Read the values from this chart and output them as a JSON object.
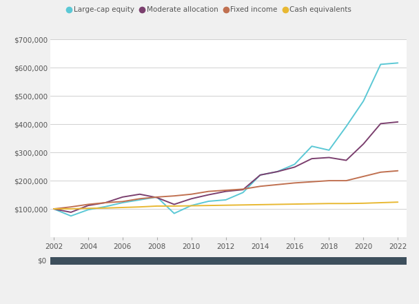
{
  "years": [
    2002,
    2003,
    2004,
    2005,
    2006,
    2007,
    2008,
    2009,
    2010,
    2011,
    2012,
    2013,
    2014,
    2015,
    2016,
    2017,
    2018,
    2019,
    2020,
    2021,
    2022
  ],
  "large_cap_equity": [
    100000,
    75000,
    97000,
    108000,
    122000,
    132000,
    142000,
    84000,
    112000,
    127000,
    132000,
    158000,
    220000,
    232000,
    258000,
    322000,
    308000,
    392000,
    482000,
    612000,
    617000
  ],
  "moderate_allocation": [
    100000,
    88000,
    112000,
    122000,
    142000,
    152000,
    140000,
    116000,
    136000,
    150000,
    162000,
    168000,
    220000,
    232000,
    248000,
    278000,
    282000,
    272000,
    330000,
    402000,
    408000
  ],
  "fixed_income": [
    100000,
    107000,
    116000,
    122000,
    126000,
    136000,
    142000,
    146000,
    152000,
    162000,
    166000,
    170000,
    180000,
    186000,
    192000,
    196000,
    200000,
    200000,
    215000,
    230000,
    235000
  ],
  "cash_equivalents": [
    100000,
    100000,
    102000,
    103000,
    105000,
    107000,
    110000,
    110000,
    111000,
    112000,
    113000,
    114000,
    115000,
    116000,
    117000,
    118000,
    119000,
    119000,
    120000,
    122000,
    124000
  ],
  "colors": {
    "large_cap_equity": "#5bc8d5",
    "moderate_allocation": "#7b3f6e",
    "fixed_income": "#c07050",
    "cash_equivalents": "#e8b832"
  },
  "legend_labels": [
    "Large-cap equity",
    "Moderate allocation",
    "Fixed income",
    "Cash equivalents"
  ],
  "ylim": [
    0,
    700000
  ],
  "yticks": [
    0,
    100000,
    200000,
    300000,
    400000,
    500000,
    600000,
    700000
  ],
  "xticks": [
    2002,
    2004,
    2006,
    2008,
    2010,
    2012,
    2014,
    2016,
    2018,
    2020,
    2022
  ],
  "fig_bg_color": "#f0f0f0",
  "plot_bg": "#ffffff",
  "bottom_bar_color": "#3d4f5c",
  "grid_color": "#d0d0d0",
  "tick_color": "#aaaaaa",
  "label_color": "#555555"
}
